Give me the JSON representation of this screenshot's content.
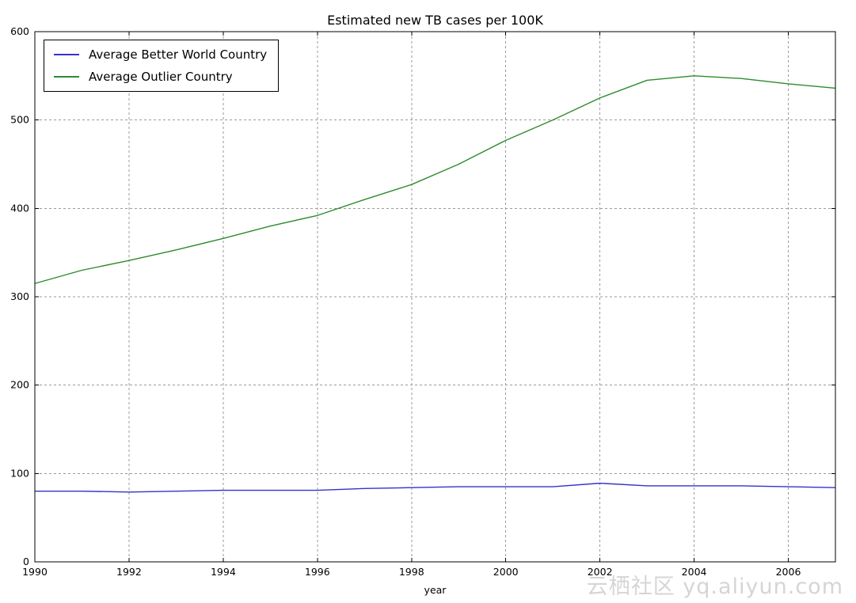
{
  "title": "Estimated new TB cases per 100K",
  "xlabel": "year",
  "watermark": "云栖社区 yq.aliyun.com",
  "legend": {
    "position": "upper left",
    "items": [
      {
        "label": "Average Better World Country",
        "color": "#3333cc"
      },
      {
        "label": "Average Outlier Country",
        "color": "#2e8b2e"
      }
    ]
  },
  "chart_data": {
    "type": "line",
    "title": "Estimated new TB cases per 100K",
    "xlabel": "year",
    "ylabel": "",
    "grid": true,
    "grid_color": "#9a9a9a",
    "legend_position": "upper left",
    "xlim": [
      1990,
      2007
    ],
    "ylim": [
      0,
      600
    ],
    "xticks": [
      1990,
      1992,
      1994,
      1996,
      1998,
      2000,
      2002,
      2004,
      2006
    ],
    "yticks": [
      0,
      100,
      200,
      300,
      400,
      500,
      600
    ],
    "x": [
      1990,
      1991,
      1992,
      1993,
      1994,
      1995,
      1996,
      1997,
      1998,
      1999,
      2000,
      2001,
      2002,
      2003,
      2004,
      2005,
      2006,
      2007
    ],
    "series": [
      {
        "name": "Average Better World Country",
        "color": "#3333cc",
        "values": [
          80,
          80,
          79,
          80,
          81,
          81,
          81,
          83,
          84,
          85,
          85,
          85,
          89,
          86,
          86,
          86,
          85,
          84
        ]
      },
      {
        "name": "Average Outlier Country",
        "color": "#2e8b2e",
        "values": [
          315,
          330,
          341,
          353,
          366,
          380,
          392,
          410,
          427,
          450,
          477,
          500,
          525,
          545,
          550,
          547,
          541,
          536
        ]
      }
    ]
  }
}
